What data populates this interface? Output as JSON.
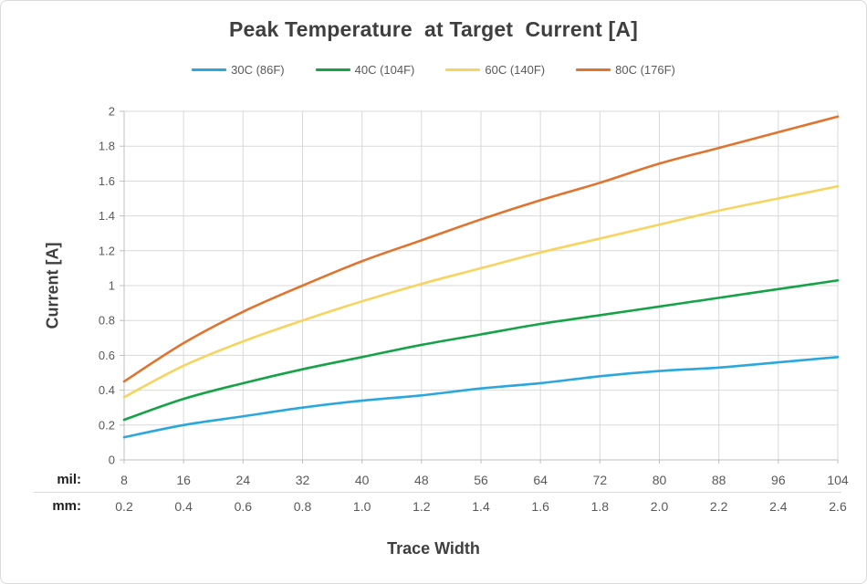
{
  "title": "Peak Temperature  at Target  Current [A]",
  "chart_data": {
    "type": "line",
    "title": "Peak Temperature at Target Current [A]",
    "xlabel": "Trace Width",
    "ylabel": "Current [A]",
    "x_axis_rows": {
      "mil_label": "mil:",
      "mm_label": "mm:"
    },
    "x_mil": [
      8,
      16,
      24,
      32,
      40,
      48,
      56,
      64,
      72,
      80,
      88,
      96,
      104
    ],
    "x_mm_labels": [
      "0.2",
      "0.4",
      "0.6",
      "0.8",
      "1.0",
      "1.2",
      "1.4",
      "1.6",
      "1.8",
      "2.0",
      "2.2",
      "2.4",
      "2.6"
    ],
    "ylim": [
      0,
      2
    ],
    "y_tick_labels": [
      "0",
      "0.2",
      "0.4",
      "0.6",
      "0.8",
      "1",
      "1.2",
      "1.4",
      "1.6",
      "1.8",
      "2"
    ],
    "grid": true,
    "legend_position": "top",
    "series": [
      {
        "name": "30C (86F)",
        "color": "#2BA7E0",
        "values": [
          0.13,
          0.2,
          0.25,
          0.3,
          0.34,
          0.37,
          0.41,
          0.44,
          0.48,
          0.51,
          0.53,
          0.56,
          0.59
        ]
      },
      {
        "name": "40C (104F)",
        "color": "#16A348",
        "values": [
          0.23,
          0.35,
          0.44,
          0.52,
          0.59,
          0.66,
          0.72,
          0.78,
          0.83,
          0.88,
          0.93,
          0.98,
          1.03
        ]
      },
      {
        "name": "60C (140F)",
        "color": "#F7D45F",
        "values": [
          0.36,
          0.54,
          0.68,
          0.8,
          0.91,
          1.01,
          1.1,
          1.19,
          1.27,
          1.35,
          1.43,
          1.5,
          1.57
        ]
      },
      {
        "name": "80C (176F)",
        "color": "#E0742F",
        "values": [
          0.45,
          0.67,
          0.85,
          1.0,
          1.14,
          1.26,
          1.38,
          1.49,
          1.59,
          1.7,
          1.79,
          1.88,
          1.97
        ]
      }
    ],
    "colors": {
      "grid": "#d9d9d9",
      "axis": "#bfbfbf",
      "tick_text": "#595959",
      "title_text": "#3f3f3f",
      "row_separator": "#d9d9d9"
    }
  }
}
